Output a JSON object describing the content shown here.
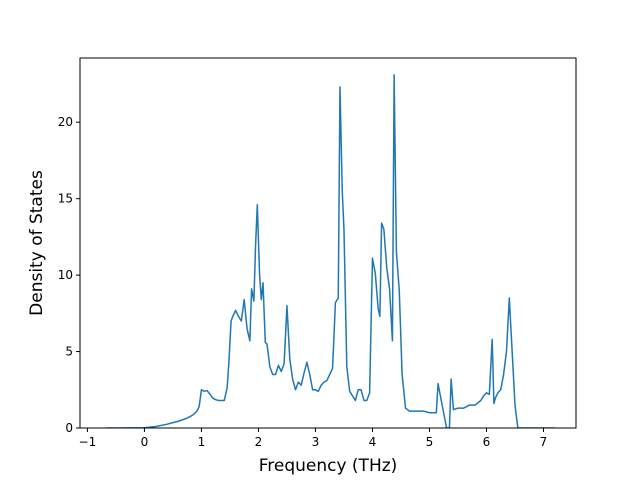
{
  "chart_data": {
    "type": "line",
    "title": "",
    "xlabel": "Frequency (THz)",
    "ylabel": "Density of States",
    "xlim": [
      -1.13,
      7.57
    ],
    "ylim": [
      0,
      24.2
    ],
    "xticks": [
      -1,
      0,
      1,
      2,
      3,
      4,
      5,
      6,
      7
    ],
    "yticks": [
      0,
      5,
      10,
      15,
      20
    ],
    "grid": false,
    "legend": "none",
    "series": [
      {
        "color": "#1f77b4",
        "x": [
          -0.67,
          -0.4,
          0.0,
          0.2,
          0.4,
          0.6,
          0.75,
          0.85,
          0.92,
          0.96,
          1.0,
          1.05,
          1.1,
          1.15,
          1.2,
          1.25,
          1.3,
          1.35,
          1.4,
          1.45,
          1.48,
          1.52,
          1.55,
          1.6,
          1.65,
          1.7,
          1.75,
          1.8,
          1.85,
          1.88,
          1.92,
          1.95,
          1.98,
          2.02,
          2.05,
          2.08,
          2.12,
          2.15,
          2.2,
          2.25,
          2.3,
          2.35,
          2.4,
          2.45,
          2.5,
          2.55,
          2.6,
          2.65,
          2.7,
          2.75,
          2.8,
          2.85,
          2.9,
          2.95,
          3.0,
          3.05,
          3.1,
          3.15,
          3.2,
          3.25,
          3.3,
          3.35,
          3.4,
          3.43,
          3.47,
          3.5,
          3.55,
          3.6,
          3.65,
          3.7,
          3.75,
          3.8,
          3.85,
          3.9,
          3.95,
          4.0,
          4.05,
          4.1,
          4.13,
          4.16,
          4.2,
          4.25,
          4.3,
          4.35,
          4.38,
          4.42,
          4.47,
          4.52,
          4.58,
          4.65,
          4.75,
          4.9,
          5.0,
          5.08,
          5.12,
          5.15,
          5.3,
          5.35,
          5.38,
          5.42,
          5.5,
          5.6,
          5.7,
          5.8,
          5.9,
          5.95,
          6.0,
          6.05,
          6.1,
          6.13,
          6.16,
          6.2,
          6.25,
          6.3,
          6.35,
          6.4,
          6.45,
          6.5,
          6.55,
          6.6,
          6.7,
          7.2
        ],
        "values": [
          0.0,
          0.0,
          0.02,
          0.1,
          0.25,
          0.45,
          0.65,
          0.85,
          1.1,
          1.4,
          2.5,
          2.4,
          2.45,
          2.2,
          1.95,
          1.85,
          1.8,
          1.8,
          1.8,
          2.6,
          4.2,
          7.0,
          7.3,
          7.7,
          7.3,
          7.0,
          8.4,
          6.5,
          5.7,
          9.1,
          8.3,
          12.0,
          14.6,
          10.0,
          8.4,
          9.5,
          5.6,
          5.5,
          4.0,
          3.5,
          3.5,
          4.1,
          3.7,
          4.2,
          8.0,
          4.5,
          3.2,
          2.5,
          3.0,
          2.8,
          3.6,
          4.3,
          3.5,
          2.5,
          2.5,
          2.4,
          2.8,
          3.0,
          3.1,
          3.5,
          3.9,
          8.2,
          8.5,
          22.3,
          15.5,
          13.0,
          4.0,
          2.4,
          2.1,
          1.8,
          2.5,
          2.5,
          1.8,
          1.8,
          2.3,
          11.1,
          10.1,
          7.8,
          7.3,
          13.4,
          13.0,
          10.5,
          9.1,
          5.7,
          23.1,
          11.5,
          9.0,
          3.5,
          1.3,
          1.1,
          1.1,
          1.1,
          1.0,
          1.0,
          1.0,
          2.9,
          0.0,
          0.0,
          3.2,
          1.2,
          1.3,
          1.3,
          1.5,
          1.5,
          1.8,
          2.1,
          2.3,
          2.2,
          5.8,
          1.6,
          2.0,
          2.3,
          2.5,
          3.5,
          5.0,
          8.5,
          5.0,
          1.5,
          0.0,
          0.0,
          0.0,
          0.0
        ]
      }
    ]
  }
}
